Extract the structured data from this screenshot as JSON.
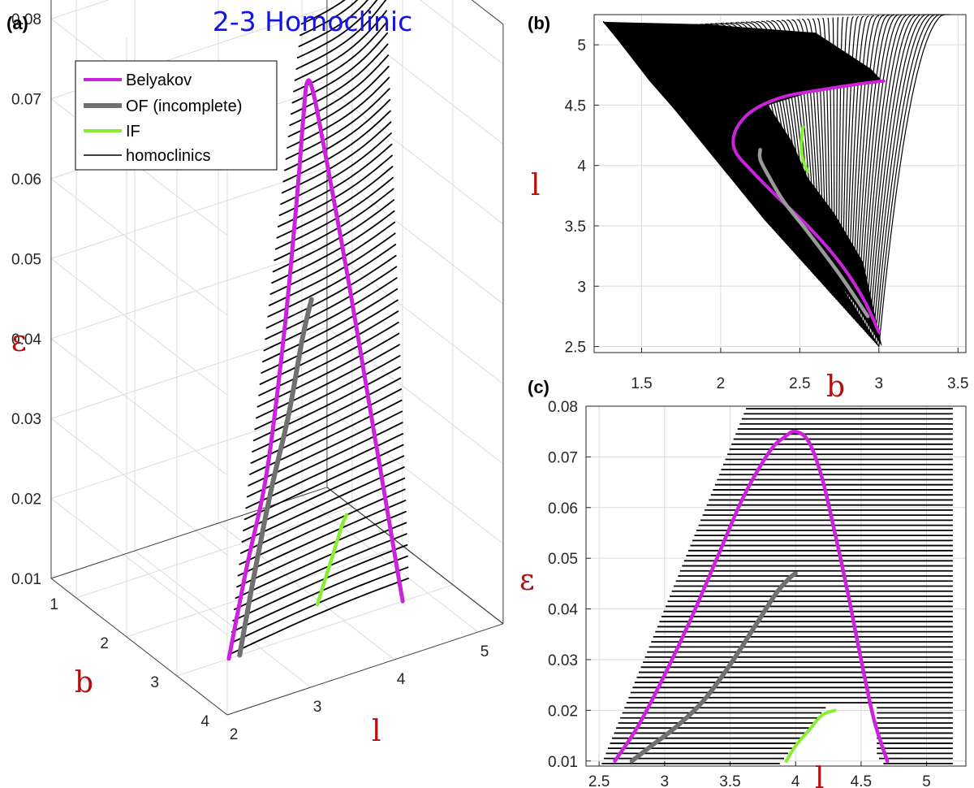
{
  "title": "2-3 Homoclinic",
  "colors": {
    "belyakov": "#cc22dd",
    "of": "#707070",
    "of_b": "#9a9a9a",
    "if": "#88ee33",
    "homoclinics": "#000000",
    "title": "#1414e6",
    "axis_label": "#b01010"
  },
  "panel_a": {
    "label": "(a)",
    "legend": [
      {
        "key": "belyakov",
        "label": "Belyakov"
      },
      {
        "key": "of",
        "label": "OF (incomplete)"
      },
      {
        "key": "if",
        "label": "IF"
      },
      {
        "key": "homoclinics",
        "label": "homoclinics"
      }
    ],
    "z_ticks": [
      "0.08",
      "0.07",
      "0.06",
      "0.05",
      "0.04",
      "0.03",
      "0.02",
      "0.01"
    ],
    "b_ticks": [
      "1",
      "2",
      "3",
      "4"
    ],
    "l_ticks": [
      "2",
      "3",
      "4",
      "5"
    ],
    "zlabel": "ε",
    "blabel": "b",
    "llabel": "l"
  },
  "panel_b": {
    "label": "(b)",
    "x_ticks": [
      "1.5",
      "2",
      "2.5",
      "3",
      "3.5"
    ],
    "y_ticks": [
      "5",
      "4.5",
      "4",
      "3.5",
      "3",
      "2.5"
    ],
    "xlabel": "b",
    "ylabel": "l"
  },
  "panel_c": {
    "label": "(c)",
    "x_ticks": [
      "2.5",
      "3",
      "3.5",
      "4",
      "4.5",
      "5"
    ],
    "y_ticks": [
      "0.08",
      "0.07",
      "0.06",
      "0.05",
      "0.04",
      "0.03",
      "0.02",
      "0.01"
    ],
    "xlabel": "l",
    "ylabel": "ε"
  },
  "chart_data": [
    {
      "type": "line",
      "panel": "a",
      "title": "2-3 Homoclinic",
      "xlabel": "l",
      "ylabel": "b",
      "zlabel": "ε",
      "xlim": [
        2,
        5.3
      ],
      "ylim": [
        0.5,
        4
      ],
      "zlim": [
        0.01,
        0.085
      ],
      "grid": true,
      "legend_position": "top-left",
      "series": [
        {
          "name": "Belyakov",
          "l": [
            2.62,
            2.9,
            3.2,
            3.5,
            3.75,
            3.9,
            3.97,
            4.03,
            4.12,
            4.3,
            4.5,
            4.65,
            4.7
          ],
          "b": [
            3.0,
            2.85,
            2.7,
            2.6,
            2.4,
            2.3,
            2.25,
            2.2,
            2.15,
            2.08,
            2.3,
            2.7,
            3.0
          ],
          "eps": [
            0.01,
            0.02,
            0.03,
            0.045,
            0.06,
            0.07,
            0.074,
            0.073,
            0.066,
            0.05,
            0.03,
            0.015,
            0.01
          ]
        },
        {
          "name": "OF (incomplete)",
          "l": [
            2.75,
            3.0,
            3.3,
            3.6,
            3.85,
            4.0
          ],
          "b": [
            3.0,
            2.9,
            2.8,
            2.65,
            2.4,
            2.25
          ],
          "eps": [
            0.01,
            0.018,
            0.027,
            0.035,
            0.043,
            0.047
          ]
        },
        {
          "name": "IF",
          "l": [
            3.95,
            4.05,
            4.15,
            4.25,
            4.3
          ],
          "b": [
            2.55,
            2.53,
            2.52,
            2.52,
            2.52
          ],
          "eps": [
            0.01,
            0.013,
            0.016,
            0.019,
            0.02
          ]
        }
      ]
    },
    {
      "type": "line",
      "panel": "b",
      "xlabel": "b",
      "ylabel": "l",
      "xlim": [
        1.2,
        3.55
      ],
      "ylim": [
        2.45,
        5.25
      ],
      "grid": true,
      "series": [
        {
          "name": "Belyakov",
          "x": [
            3.0,
            2.9,
            2.75,
            2.55,
            2.35,
            2.2,
            2.1,
            2.08,
            2.12,
            2.22,
            2.4,
            2.65,
            2.9,
            3.03
          ],
          "y": [
            2.62,
            2.9,
            3.2,
            3.5,
            3.75,
            3.95,
            4.1,
            4.22,
            4.35,
            4.47,
            4.57,
            4.63,
            4.68,
            4.7
          ]
        },
        {
          "name": "OF (incomplete)",
          "x": [
            2.93,
            2.75,
            2.55,
            2.4,
            2.3,
            2.25,
            2.25
          ],
          "y": [
            2.75,
            3.1,
            3.45,
            3.7,
            3.92,
            4.05,
            4.13
          ]
        },
        {
          "name": "IF",
          "x": [
            2.55,
            2.52,
            2.51,
            2.52
          ],
          "y": [
            3.95,
            4.05,
            4.18,
            4.32
          ]
        }
      ]
    },
    {
      "type": "line",
      "panel": "c",
      "xlabel": "l",
      "ylabel": "ε",
      "xlim": [
        2.4,
        5.3
      ],
      "ylim": [
        0.009,
        0.08
      ],
      "grid": true,
      "series": [
        {
          "name": "Belyakov",
          "x": [
            2.62,
            2.8,
            3.0,
            3.2,
            3.4,
            3.6,
            3.8,
            3.92,
            4.0,
            4.1,
            4.2,
            4.3,
            4.4,
            4.5,
            4.6,
            4.7
          ],
          "y": [
            0.01,
            0.017,
            0.027,
            0.038,
            0.05,
            0.062,
            0.071,
            0.074,
            0.075,
            0.073,
            0.066,
            0.055,
            0.043,
            0.03,
            0.018,
            0.01
          ]
        },
        {
          "name": "OF (incomplete)",
          "x": [
            2.75,
            2.9,
            3.1,
            3.3,
            3.5,
            3.7,
            3.85,
            3.95,
            4.0
          ],
          "y": [
            0.01,
            0.013,
            0.017,
            0.022,
            0.029,
            0.037,
            0.043,
            0.046,
            0.047
          ]
        },
        {
          "name": "IF",
          "x": [
            3.93,
            4.0,
            4.1,
            4.2,
            4.3
          ],
          "y": [
            0.01,
            0.013,
            0.016,
            0.019,
            0.02
          ]
        }
      ]
    }
  ]
}
